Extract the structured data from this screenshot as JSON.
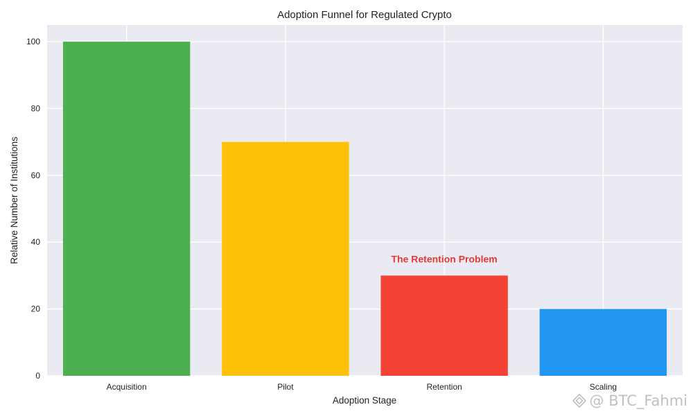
{
  "chart_data": {
    "type": "bar",
    "title": "Adoption Funnel for Regulated Crypto",
    "xlabel": "Adoption Stage",
    "ylabel": "Relative Number of Institutions",
    "categories": [
      "Acquisition",
      "Pilot",
      "Retention",
      "Scaling"
    ],
    "values": [
      100,
      70,
      30,
      20
    ],
    "colors": [
      "#4caf50",
      "#ffc107",
      "#f44336",
      "#2196f3"
    ],
    "ylim": [
      0,
      105
    ],
    "yticks": [
      0,
      20,
      40,
      60,
      80,
      100
    ],
    "grid": true,
    "background": "#eaeaf2",
    "annotation": {
      "text": "The Retention Problem",
      "category": "Retention",
      "y": 35,
      "color": "#e53935"
    }
  },
  "watermark": {
    "text": "@ BTC_Fahmi",
    "logo": "binance-square-logo-icon"
  }
}
